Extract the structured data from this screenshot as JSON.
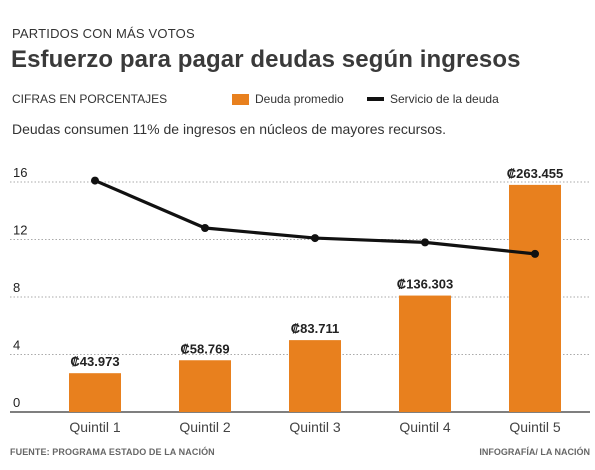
{
  "header": {
    "kicker": "PARTIDOS CON MÁS VOTOS",
    "title": "Esfuerzo para pagar deudas según ingresos",
    "unit": "CIFRAS EN PORCENTAJES",
    "subtitle": "Deudas consumen 11% de ingresos en núcleos de mayores recursos."
  },
  "legend": {
    "bar_label": "Deuda promedio",
    "line_label": "Servicio de la deuda"
  },
  "footer": {
    "source": "FUENTE: PROGRAMA ESTADO DE LA NACIÓN",
    "credit": "INFOGRAFÍA/ LA NACIÓN"
  },
  "colors": {
    "bar": "#e8801e",
    "line": "#111111",
    "grid": "#aaaaaa"
  },
  "chart_data": {
    "type": "bar",
    "categories": [
      "Quintil 1",
      "Quintil 2",
      "Quintil 3",
      "Quintil 4",
      "Quintil 5"
    ],
    "ylim": [
      0,
      16
    ],
    "yticks": [
      0,
      4,
      8,
      12,
      16
    ],
    "grid": true,
    "legend_position": "top-right",
    "series": [
      {
        "name": "Deuda promedio",
        "type": "bar",
        "values": [
          2.7,
          3.6,
          5.0,
          8.1,
          15.8
        ],
        "labels": [
          "₡43.973",
          "₡58.769",
          "₡83.711",
          "₡136.303",
          "₡263.455"
        ]
      },
      {
        "name": "Servicio de la deuda",
        "type": "line",
        "values": [
          16.1,
          12.8,
          12.1,
          11.8,
          11.0
        ]
      }
    ]
  }
}
